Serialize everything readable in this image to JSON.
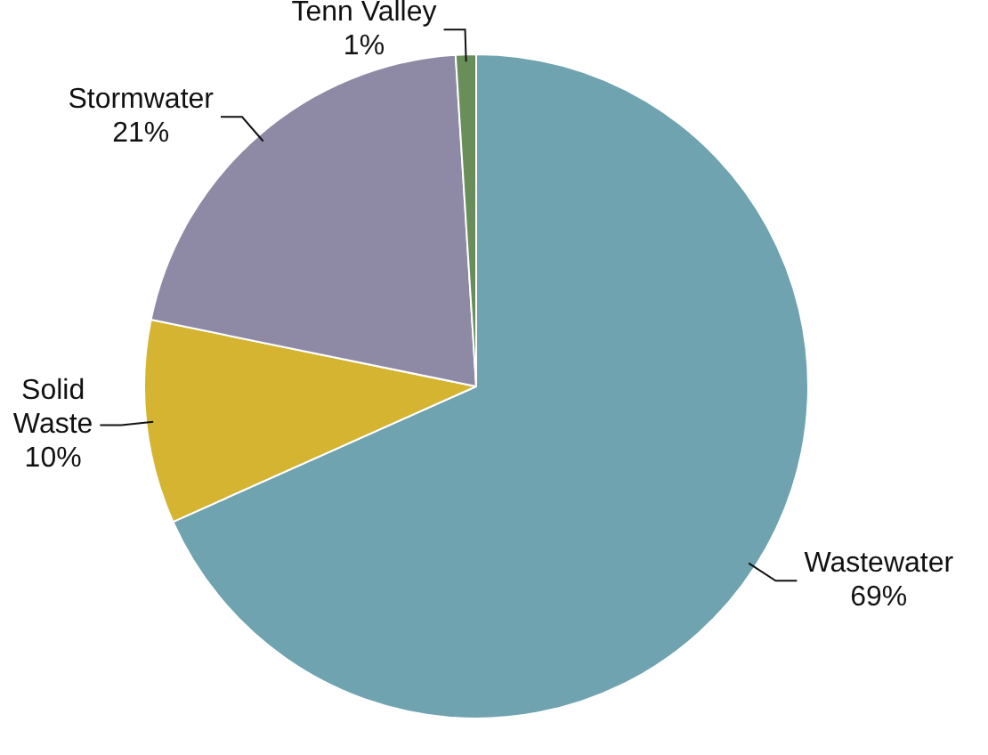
{
  "chart_data": {
    "type": "pie",
    "categories": [
      "Wastewater",
      "Solid Waste",
      "Stormwater",
      "Tenn Valley"
    ],
    "values": [
      69,
      10,
      21,
      1
    ],
    "value_labels": [
      "69%",
      "10%",
      "21%",
      "1%"
    ],
    "colors": [
      "#6fa3b0",
      "#d4b430",
      "#8e8aa5",
      "#6a8e5a"
    ],
    "legend": false
  }
}
